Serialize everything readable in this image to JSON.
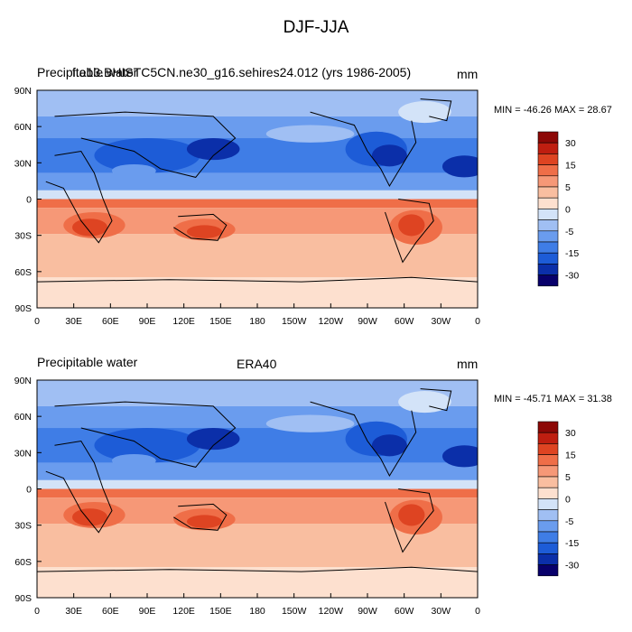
{
  "figure": {
    "title": "DJF-JJA"
  },
  "panels": [
    {
      "left_title": "Precipitable water",
      "center_title": "f.e13.BHISTC5CN.ne30_g16.sehires24.012 (yrs 1986-2005)",
      "units": "mm",
      "min_max": "MIN = -46.26 MAX = 28.67"
    },
    {
      "left_title": "Precipitable water",
      "center_title": "ERA40",
      "units": "mm",
      "min_max": "MIN = -45.71 MAX = 31.38"
    }
  ],
  "colors": {
    "levels": [
      "#08006b",
      "#0b2fa9",
      "#1d5cd7",
      "#3f7de6",
      "#6a9cee",
      "#a0bff3",
      "#d3e3f8",
      "#fde0cf",
      "#f9bea0",
      "#f69877",
      "#ef6e48",
      "#de4422",
      "#bf1e10",
      "#8c0806"
    ],
    "label_values": [
      "30",
      "15",
      "5",
      "0",
      "-5",
      "-15",
      "-30"
    ]
  },
  "chart_data": [
    {
      "type": "heatmap",
      "title": "Precipitable water",
      "subtitle": "f.e13.BHISTC5CN.ne30_g16.sehires24.012 (yrs 1986-2005)",
      "units": "mm",
      "xlabel": "",
      "ylabel": "",
      "x_ticks": [
        "0",
        "30E",
        "60E",
        "90E",
        "120E",
        "150E",
        "180",
        "150W",
        "120W",
        "90W",
        "60W",
        "30W",
        "0"
      ],
      "y_ticks": [
        "90N",
        "60N",
        "30N",
        "0",
        "30S",
        "60S",
        "90S"
      ],
      "colorbar_labels": [
        "30",
        "15",
        "5",
        "0",
        "-5",
        "-15",
        "-30"
      ],
      "min": -46.26,
      "max": 28.67,
      "pattern": "northern hemisphere negative (blue), southern hemisphere positive (red); strongest positive over southern Africa, Australia and South America"
    },
    {
      "type": "heatmap",
      "title": "Precipitable water",
      "subtitle": "ERA40",
      "units": "mm",
      "xlabel": "",
      "ylabel": "",
      "x_ticks": [
        "0",
        "30E",
        "60E",
        "90E",
        "120E",
        "150E",
        "180",
        "150W",
        "120W",
        "90W",
        "60W",
        "30W",
        "0"
      ],
      "y_ticks": [
        "90N",
        "60N",
        "30N",
        "0",
        "30S",
        "60S",
        "90S"
      ],
      "colorbar_labels": [
        "30",
        "15",
        "5",
        "0",
        "-5",
        "-15",
        "-30"
      ],
      "min": -45.71,
      "max": 31.38,
      "pattern": "northern hemisphere negative (blue), southern hemisphere positive (red); strongest positive over southern Africa, Australia and South America"
    }
  ]
}
